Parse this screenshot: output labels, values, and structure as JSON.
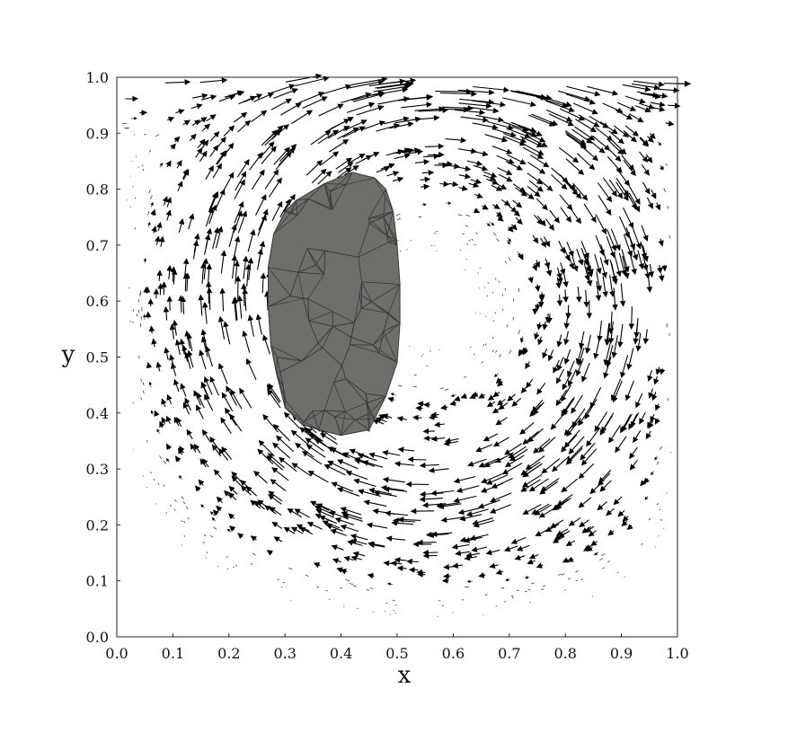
{
  "chart_data": {
    "type": "quiver",
    "title": "",
    "xlabel": "x",
    "ylabel": "y",
    "xlim": [
      0.0,
      1.0
    ],
    "ylim": [
      0.0,
      1.0
    ],
    "x_ticks": [
      "0.0",
      "0.1",
      "0.2",
      "0.3",
      "0.4",
      "0.5",
      "0.6",
      "0.7",
      "0.8",
      "0.9",
      "1.0"
    ],
    "y_ticks": [
      "0.0",
      "0.1",
      "0.2",
      "0.3",
      "0.4",
      "0.5",
      "0.6",
      "0.7",
      "0.8",
      "0.9",
      "1.0"
    ],
    "grid": false,
    "vortex_center": [
      0.56,
      0.6
    ],
    "lid_velocity": 1.0,
    "body": {
      "fill": "#6f6e6a",
      "outline": [
        [
          0.42,
          0.83
        ],
        [
          0.46,
          0.82
        ],
        [
          0.48,
          0.8
        ],
        [
          0.493,
          0.76
        ],
        [
          0.5,
          0.7
        ],
        [
          0.505,
          0.63
        ],
        [
          0.505,
          0.56
        ],
        [
          0.5,
          0.49
        ],
        [
          0.48,
          0.43
        ],
        [
          0.46,
          0.39
        ],
        [
          0.45,
          0.37
        ],
        [
          0.4,
          0.36
        ],
        [
          0.36,
          0.37
        ],
        [
          0.33,
          0.38
        ],
        [
          0.3,
          0.41
        ],
        [
          0.285,
          0.47
        ],
        [
          0.275,
          0.52
        ],
        [
          0.27,
          0.59
        ],
        [
          0.27,
          0.66
        ],
        [
          0.28,
          0.72
        ],
        [
          0.3,
          0.76
        ],
        [
          0.32,
          0.78
        ],
        [
          0.37,
          0.81
        ]
      ]
    }
  }
}
